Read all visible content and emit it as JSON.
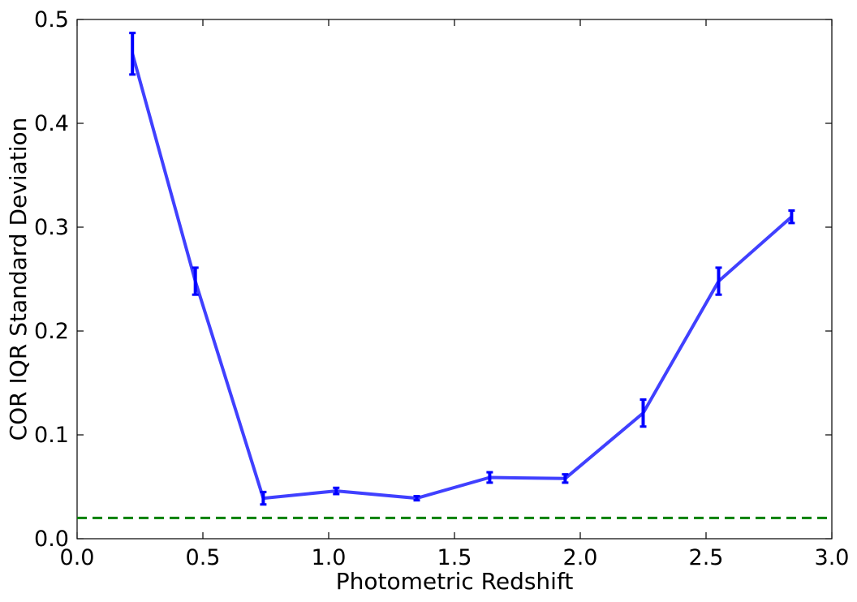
{
  "colors": {
    "series": "#0000ff",
    "reference": "#008000",
    "axes": "#000000",
    "background": "#ffffff"
  },
  "chart_data": {
    "type": "line",
    "xlabel": "Photometric Redshift",
    "ylabel": "COR IQR Standard Deviation",
    "xlim": [
      0.0,
      3.0
    ],
    "ylim": [
      0.0,
      0.5
    ],
    "x_ticks": [
      "0.0",
      "0.5",
      "1.0",
      "1.5",
      "2.0",
      "2.5",
      "3.0"
    ],
    "y_ticks": [
      "0.0",
      "0.1",
      "0.2",
      "0.3",
      "0.4",
      "0.5"
    ],
    "grid": false,
    "legend": "none",
    "series": [
      {
        "style": "solid line with error bars",
        "x": [
          0.22,
          0.47,
          0.74,
          1.03,
          1.35,
          1.64,
          1.94,
          2.25,
          2.55,
          2.84
        ],
        "y": [
          0.467,
          0.248,
          0.039,
          0.046,
          0.039,
          0.059,
          0.058,
          0.121,
          0.248,
          0.31
        ],
        "yerr": [
          0.02,
          0.013,
          0.006,
          0.003,
          0.002,
          0.005,
          0.004,
          0.013,
          0.013,
          0.006
        ]
      }
    ],
    "reference_lines": [
      {
        "orientation": "horizontal",
        "y": 0.02,
        "style": "dashed"
      }
    ]
  }
}
